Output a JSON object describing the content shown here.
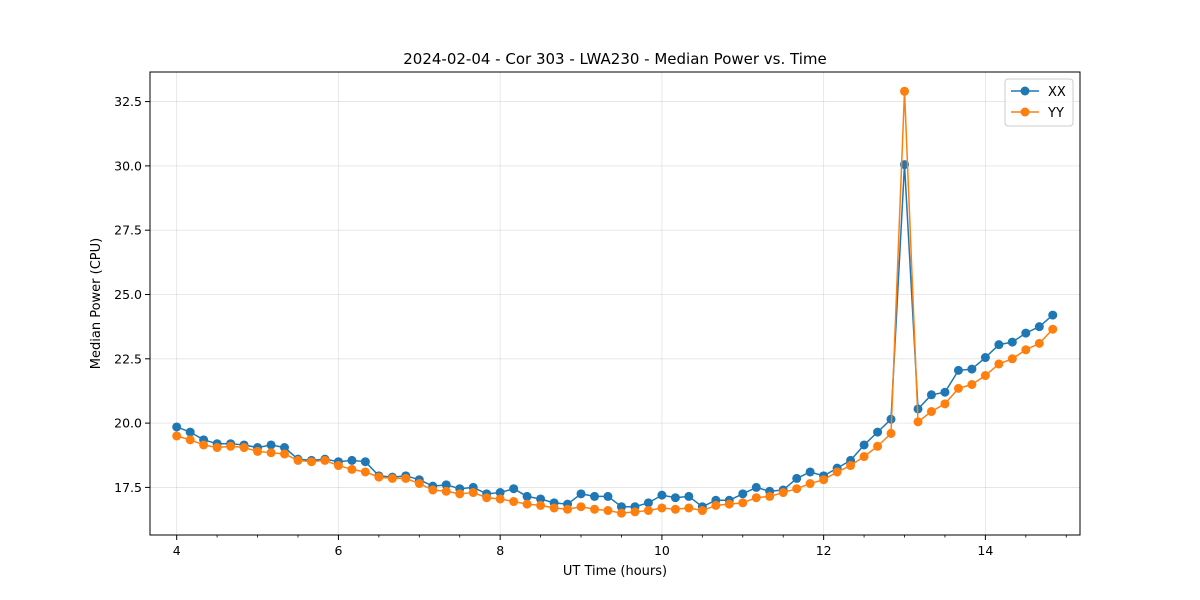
{
  "chart_data": {
    "type": "line",
    "title": "2024-02-04 - Cor 303 - LWA230 - Median Power vs. Time",
    "xlabel": "UT Time (hours)",
    "ylabel": "Median Power (CPU)",
    "xlim": [
      3.67,
      15.17
    ],
    "ylim": [
      15.65,
      33.65
    ],
    "xticks": [
      4,
      6,
      8,
      10,
      12,
      14
    ],
    "xtick_labels": [
      "4",
      "6",
      "8",
      "10",
      "12",
      "14"
    ],
    "yticks": [
      17.5,
      20.0,
      22.5,
      25.0,
      27.5,
      30.0,
      32.5
    ],
    "ytick_labels": [
      "17.5",
      "20.0",
      "22.5",
      "25.0",
      "27.5",
      "30.0",
      "32.5"
    ],
    "grid": true,
    "legend_position": "top-right",
    "x": [
      4.0,
      4.167,
      4.333,
      4.5,
      4.667,
      4.833,
      5.0,
      5.167,
      5.333,
      5.5,
      5.667,
      5.833,
      6.0,
      6.167,
      6.333,
      6.5,
      6.667,
      6.833,
      7.0,
      7.167,
      7.333,
      7.5,
      7.667,
      7.833,
      8.0,
      8.167,
      8.333,
      8.5,
      8.667,
      8.833,
      9.0,
      9.167,
      9.333,
      9.5,
      9.667,
      9.833,
      10.0,
      10.167,
      10.333,
      10.5,
      10.667,
      10.833,
      11.0,
      11.167,
      11.333,
      11.5,
      11.667,
      11.833,
      12.0,
      12.167,
      12.333,
      12.5,
      12.667,
      12.833,
      13.0,
      13.167,
      13.333,
      13.5,
      13.667,
      13.833,
      14.0,
      14.167,
      14.333,
      14.5,
      14.667,
      14.833
    ],
    "series": [
      {
        "name": "XX",
        "color": "#1f77b4",
        "values": [
          19.85,
          19.65,
          19.35,
          19.2,
          19.2,
          19.15,
          19.05,
          19.15,
          19.05,
          18.6,
          18.55,
          18.6,
          18.5,
          18.55,
          18.5,
          17.95,
          17.9,
          17.95,
          17.8,
          17.55,
          17.6,
          17.45,
          17.5,
          17.25,
          17.3,
          17.45,
          17.15,
          17.05,
          16.9,
          16.85,
          17.25,
          17.15,
          17.15,
          16.75,
          16.75,
          16.9,
          17.2,
          17.1,
          17.15,
          16.75,
          17.0,
          17.0,
          17.25,
          17.5,
          17.35,
          17.4,
          17.85,
          18.1,
          17.95,
          18.25,
          18.55,
          19.15,
          19.65,
          20.15,
          30.05,
          20.55,
          21.1,
          21.2,
          22.05,
          22.1,
          22.55,
          23.05,
          23.15,
          23.5,
          23.75,
          24.2
        ]
      },
      {
        "name": "YY",
        "color": "#ff7f0e",
        "values": [
          19.5,
          19.35,
          19.15,
          19.05,
          19.1,
          19.05,
          18.9,
          18.85,
          18.8,
          18.55,
          18.5,
          18.55,
          18.35,
          18.2,
          18.1,
          17.9,
          17.85,
          17.85,
          17.65,
          17.4,
          17.35,
          17.25,
          17.3,
          17.1,
          17.05,
          16.95,
          16.85,
          16.8,
          16.7,
          16.65,
          16.75,
          16.65,
          16.6,
          16.5,
          16.55,
          16.6,
          16.7,
          16.65,
          16.7,
          16.6,
          16.8,
          16.85,
          16.9,
          17.1,
          17.15,
          17.3,
          17.45,
          17.65,
          17.8,
          18.1,
          18.35,
          18.7,
          19.1,
          19.6,
          32.9,
          20.05,
          20.45,
          20.75,
          21.35,
          21.5,
          21.85,
          22.3,
          22.5,
          22.85,
          23.1,
          23.65
        ]
      }
    ]
  }
}
